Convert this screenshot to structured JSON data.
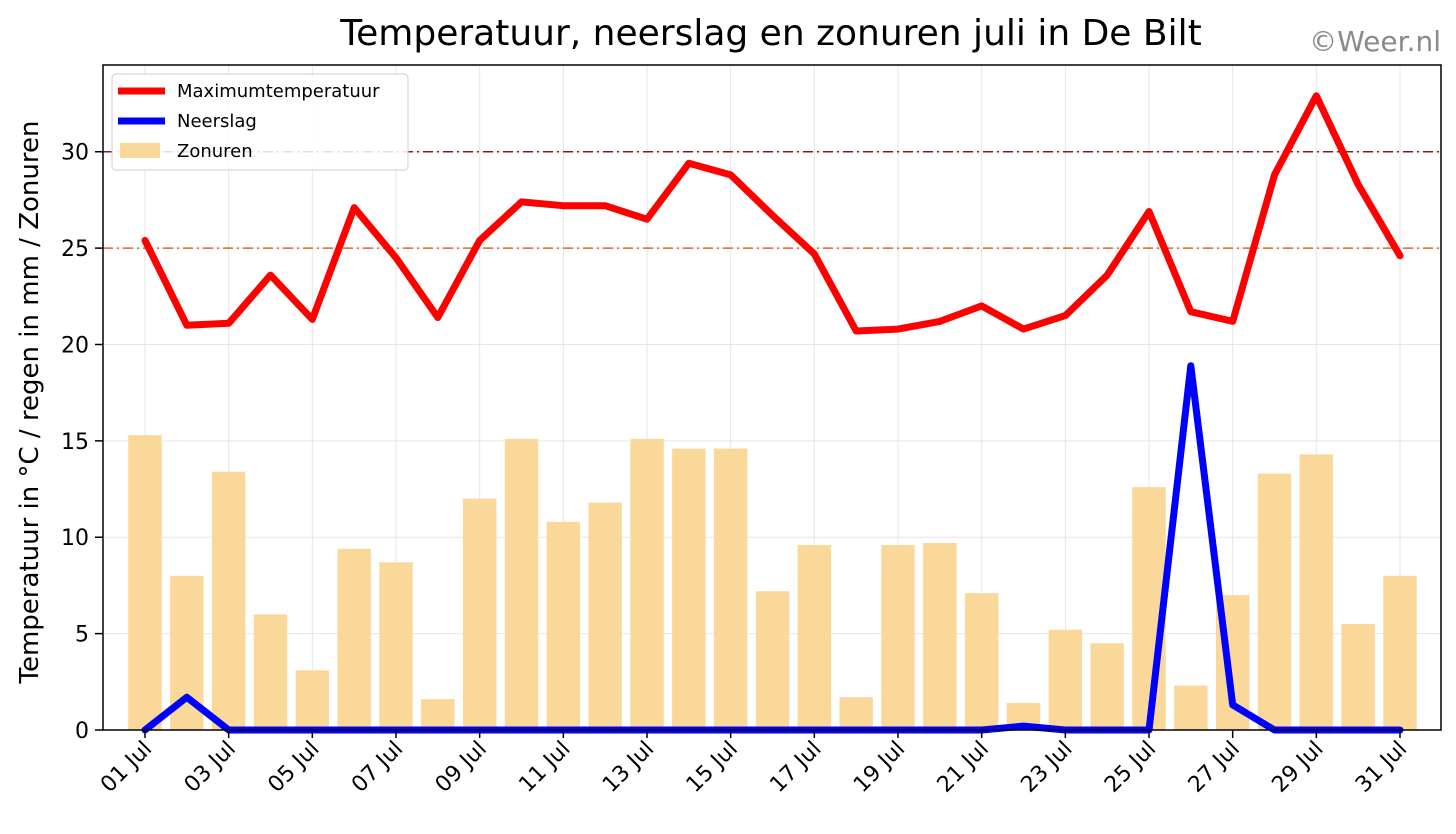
{
  "watermark": "©Weer.nl",
  "chart_data": {
    "type": "bar+line",
    "title": "Temperatuur, neerslag en zonuren juli in De Bilt",
    "xlabel": "",
    "ylabel": "Temperatuur in °C / regen in mm / Zonuren",
    "ylim": [
      0,
      34.5
    ],
    "yticks": [
      0,
      5,
      10,
      15,
      20,
      25,
      30
    ],
    "grid": true,
    "legend_position": "upper-left",
    "categories": [
      "01 Jul",
      "02 Jul",
      "03 Jul",
      "04 Jul",
      "05 Jul",
      "06 Jul",
      "07 Jul",
      "08 Jul",
      "09 Jul",
      "10 Jul",
      "11 Jul",
      "12 Jul",
      "13 Jul",
      "14 Jul",
      "15 Jul",
      "16 Jul",
      "17 Jul",
      "18 Jul",
      "19 Jul",
      "20 Jul",
      "21 Jul",
      "22 Jul",
      "23 Jul",
      "24 Jul",
      "25 Jul",
      "26 Jul",
      "27 Jul",
      "28 Jul",
      "29 Jul",
      "30 Jul",
      "31 Jul"
    ],
    "xtick_labels": [
      "01 Jul",
      "03 Jul",
      "05 Jul",
      "07 Jul",
      "09 Jul",
      "11 Jul",
      "13 Jul",
      "15 Jul",
      "17 Jul",
      "19 Jul",
      "21 Jul",
      "23 Jul",
      "25 Jul",
      "27 Jul",
      "29 Jul",
      "31 Jul"
    ],
    "reference_lines": [
      {
        "y": 30,
        "color": "#8b1a1a",
        "style": "dashdot"
      },
      {
        "y": 25,
        "color": "#e8622a",
        "style": "dashdot"
      }
    ],
    "series": [
      {
        "name": "Zonuren",
        "kind": "bar",
        "color": "#fad89a",
        "values": [
          15.3,
          8.0,
          13.4,
          6.0,
          3.1,
          9.4,
          8.7,
          1.6,
          12.0,
          15.1,
          10.8,
          11.8,
          15.1,
          14.6,
          14.6,
          7.2,
          9.6,
          1.7,
          9.6,
          9.7,
          7.1,
          1.4,
          5.2,
          4.5,
          12.6,
          2.3,
          7.0,
          13.3,
          14.3,
          5.5,
          8.0
        ]
      },
      {
        "name": "Maximumtemperatuur",
        "kind": "line",
        "color": "#ff0000",
        "values": [
          25.4,
          21.0,
          21.1,
          23.6,
          21.3,
          27.1,
          24.5,
          21.4,
          25.4,
          27.4,
          27.2,
          27.2,
          26.5,
          29.4,
          28.8,
          26.7,
          24.7,
          20.7,
          20.8,
          21.2,
          22.0,
          20.8,
          21.5,
          23.6,
          26.9,
          21.7,
          21.2,
          28.8,
          32.9,
          28.3,
          24.6
        ]
      },
      {
        "name": "Neerslag",
        "kind": "line",
        "color": "#0000ff",
        "values": [
          0.0,
          1.7,
          0.0,
          0.0,
          0.0,
          0.0,
          0.0,
          0.0,
          0.0,
          0.0,
          0.0,
          0.0,
          0.0,
          0.0,
          0.0,
          0.0,
          0.0,
          0.0,
          0.0,
          0.0,
          0.0,
          0.2,
          0.0,
          0.0,
          0.0,
          18.9,
          1.3,
          0.0,
          0.0,
          0.0,
          0.0
        ]
      }
    ]
  }
}
